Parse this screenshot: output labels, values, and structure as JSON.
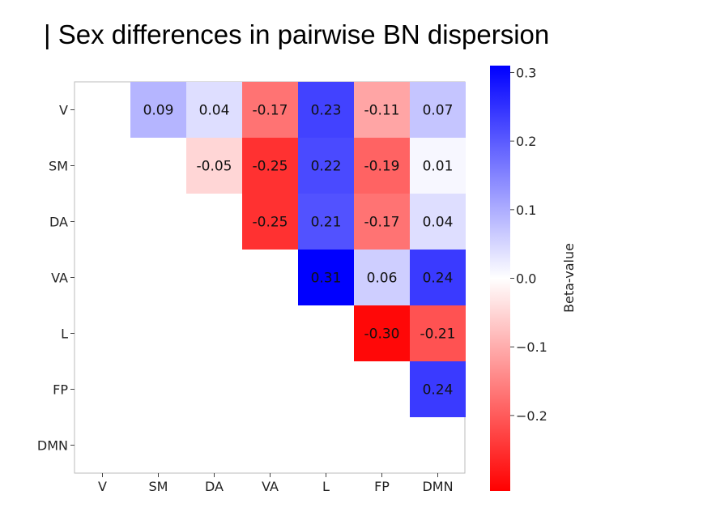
{
  "title": "| Sex differences in pairwise BN dispersion",
  "chart_data": {
    "type": "heatmap",
    "title": "",
    "x_tick_labels": [
      "V",
      "SM",
      "DA",
      "VA",
      "L",
      "FP",
      "DMN"
    ],
    "y_tick_labels": [
      "V",
      "SM",
      "DA",
      "VA",
      "L",
      "FP",
      "DMN"
    ],
    "cells": [
      {
        "row": "V",
        "col": "SM",
        "value": 0.09
      },
      {
        "row": "V",
        "col": "DA",
        "value": 0.04
      },
      {
        "row": "V",
        "col": "VA",
        "value": -0.17
      },
      {
        "row": "V",
        "col": "L",
        "value": 0.23
      },
      {
        "row": "V",
        "col": "FP",
        "value": -0.11
      },
      {
        "row": "V",
        "col": "DMN",
        "value": 0.07
      },
      {
        "row": "SM",
        "col": "DA",
        "value": -0.05
      },
      {
        "row": "SM",
        "col": "VA",
        "value": -0.25
      },
      {
        "row": "SM",
        "col": "L",
        "value": 0.22
      },
      {
        "row": "SM",
        "col": "FP",
        "value": -0.19
      },
      {
        "row": "SM",
        "col": "DMN",
        "value": 0.01
      },
      {
        "row": "DA",
        "col": "VA",
        "value": -0.25
      },
      {
        "row": "DA",
        "col": "L",
        "value": 0.21
      },
      {
        "row": "DA",
        "col": "FP",
        "value": -0.17
      },
      {
        "row": "DA",
        "col": "DMN",
        "value": 0.04
      },
      {
        "row": "VA",
        "col": "L",
        "value": 0.31
      },
      {
        "row": "VA",
        "col": "FP",
        "value": 0.06
      },
      {
        "row": "VA",
        "col": "DMN",
        "value": 0.24
      },
      {
        "row": "L",
        "col": "FP",
        "value": -0.3
      },
      {
        "row": "L",
        "col": "DMN",
        "value": -0.21
      },
      {
        "row": "FP",
        "col": "DMN",
        "value": 0.24
      }
    ],
    "colorbar": {
      "label": "Beta-value",
      "range": [
        -0.31,
        0.31
      ],
      "ticks": [
        -0.2,
        -0.1,
        0.0,
        0.1,
        0.2,
        0.3
      ],
      "tick_labels": [
        "−0.2",
        "−0.1",
        "0.0",
        "0.1",
        "0.2",
        "0.3"
      ],
      "colormap": "bwr",
      "negative_color": "#ff0000",
      "neutral_color": "#ffffff",
      "positive_color": "#0000ff"
    },
    "grid": false,
    "legend": "colorbar-right"
  }
}
